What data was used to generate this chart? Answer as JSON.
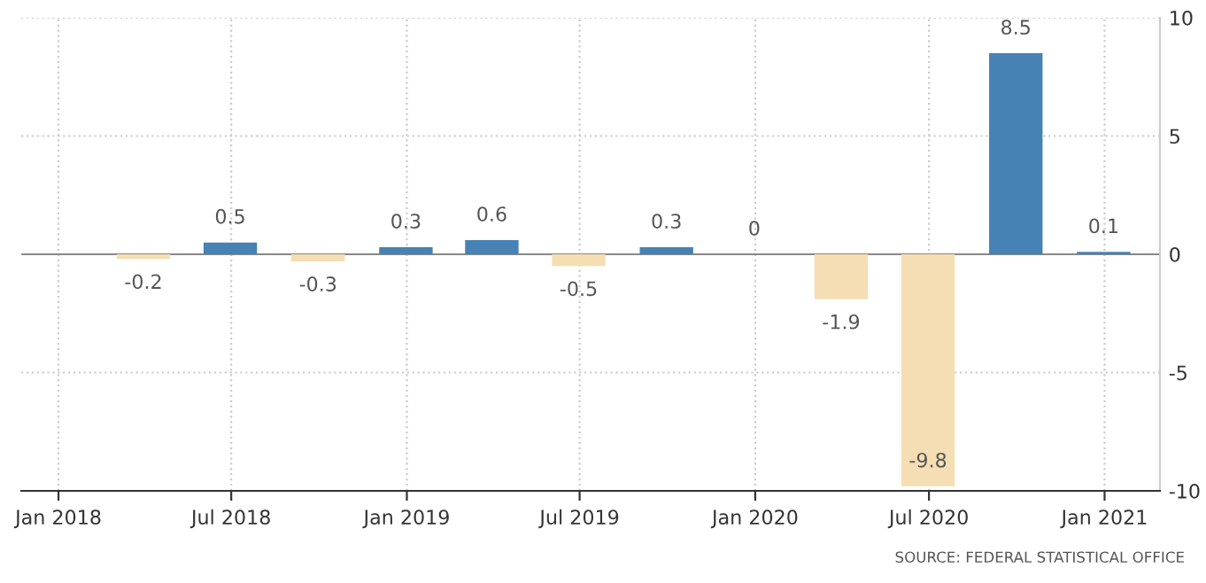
{
  "chart_data": {
    "type": "bar",
    "x": [
      "2018-03-31",
      "2018-06-30",
      "2018-09-30",
      "2018-12-31",
      "2019-03-31",
      "2019-06-30",
      "2019-09-30",
      "2019-12-31",
      "2020-03-31",
      "2020-06-30",
      "2020-09-30",
      "2020-12-31"
    ],
    "values": [
      -0.2,
      0.5,
      -0.3,
      0.3,
      0.6,
      -0.5,
      0.3,
      0,
      -1.9,
      -9.8,
      8.5,
      0.1
    ],
    "colors": [
      "#f5deb3",
      "#4682b4",
      "#f5deb3",
      "#4682b4",
      "#4682b4",
      "#f5deb3",
      "#4682b4",
      "#4682b4",
      "#f5deb3",
      "#f5deb3",
      "#4682b4",
      "#4682b4"
    ],
    "data_labels": true,
    "xlim": [
      "2017-11-23",
      "2021-02-28"
    ],
    "xticks": [
      {
        "value": "2018-01-01",
        "label": "Jan 2018"
      },
      {
        "value": "2018-07-01",
        "label": "Jul 2018"
      },
      {
        "value": "2019-01-01",
        "label": "Jan 2019"
      },
      {
        "value": "2019-07-01",
        "label": "Jul 2019"
      },
      {
        "value": "2020-01-01",
        "label": "Jan 2020"
      },
      {
        "value": "2020-07-01",
        "label": "Jul 2020"
      },
      {
        "value": "2021-01-01",
        "label": "Jan 2021"
      }
    ],
    "ylim": [
      -10,
      10
    ],
    "yticks": [
      -10,
      -5,
      0,
      5,
      10
    ],
    "grid": true,
    "annotations": [
      "SOURCE: FEDERAL STATISTICAL OFFICE"
    ]
  }
}
